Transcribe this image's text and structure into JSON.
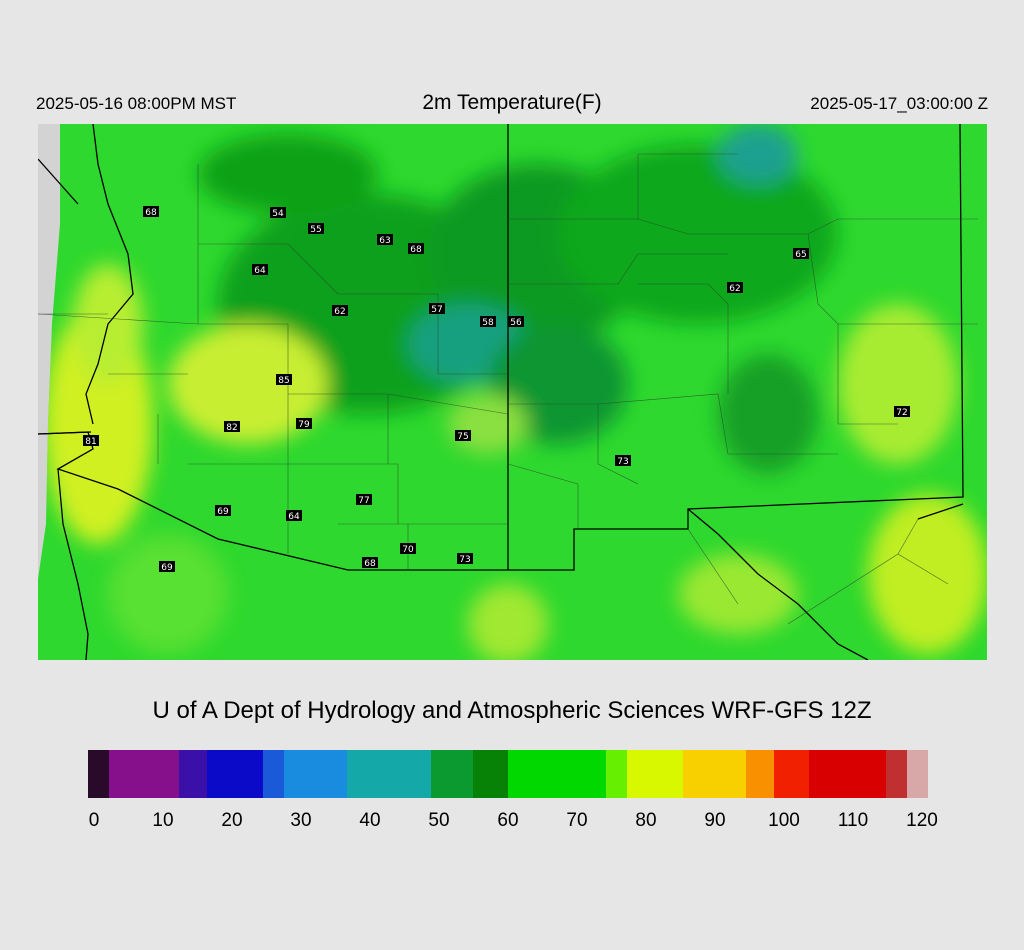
{
  "header": {
    "valid_time": "2025-05-16 08:00PM MST",
    "title": "2m Temperature(F)",
    "init_time": "2025-05-17_03:00:00 Z"
  },
  "credit": "U of A Dept of Hydrology and Atmospheric Sciences WRF-GFS 12Z",
  "colorbar": {
    "ticks": [
      "0",
      "10",
      "20",
      "30",
      "40",
      "50",
      "60",
      "70",
      "80",
      "90",
      "100",
      "110",
      "120"
    ],
    "min": 0,
    "max": 120,
    "colors": [
      {
        "from": 0,
        "to": 3,
        "color": "#2a0a2a"
      },
      {
        "from": 3,
        "to": 13,
        "color": "#86108c"
      },
      {
        "from": 13,
        "to": 17,
        "color": "#3a10a8"
      },
      {
        "from": 17,
        "to": 25,
        "color": "#0a0ac8"
      },
      {
        "from": 25,
        "to": 28,
        "color": "#1a5ad8"
      },
      {
        "from": 28,
        "to": 37,
        "color": "#1a8ce0"
      },
      {
        "from": 37,
        "to": 49,
        "color": "#14a8a8"
      },
      {
        "from": 49,
        "to": 55,
        "color": "#0a9a30"
      },
      {
        "from": 55,
        "to": 60,
        "color": "#078207"
      },
      {
        "from": 60,
        "to": 74,
        "color": "#00d800"
      },
      {
        "from": 74,
        "to": 77,
        "color": "#66f000"
      },
      {
        "from": 77,
        "to": 85,
        "color": "#d8f800"
      },
      {
        "from": 85,
        "to": 94,
        "color": "#f8d000"
      },
      {
        "from": 94,
        "to": 98,
        "color": "#f89000"
      },
      {
        "from": 98,
        "to": 103,
        "color": "#f02000"
      },
      {
        "from": 103,
        "to": 114,
        "color": "#d80000"
      },
      {
        "from": 114,
        "to": 117,
        "color": "#c03030"
      },
      {
        "from": 117,
        "to": 120,
        "color": "#d8a8a8"
      }
    ]
  },
  "stations": [
    {
      "label": "68"
    },
    {
      "label": "54"
    },
    {
      "label": "55"
    },
    {
      "label": "63"
    },
    {
      "label": "68"
    },
    {
      "label": "64"
    },
    {
      "label": "62"
    },
    {
      "label": "57"
    },
    {
      "label": "58"
    },
    {
      "label": "56"
    },
    {
      "label": "65"
    },
    {
      "label": "62"
    },
    {
      "label": "85"
    },
    {
      "label": "82"
    },
    {
      "label": "79"
    },
    {
      "label": "75"
    },
    {
      "label": "81"
    },
    {
      "label": "73"
    },
    {
      "label": "72"
    },
    {
      "label": "77"
    },
    {
      "label": "69"
    },
    {
      "label": "64"
    },
    {
      "label": "70"
    },
    {
      "label": "68"
    },
    {
      "label": "73"
    },
    {
      "label": "69"
    }
  ],
  "palette": {
    "background": "#e6e6e6",
    "no_data": "#d3d3d3",
    "border": "#000000"
  }
}
